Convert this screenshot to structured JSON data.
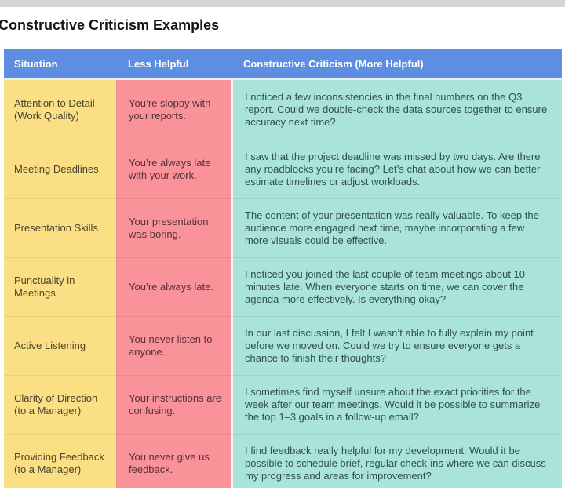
{
  "page": {
    "title": "Constructive Criticism Examples"
  },
  "table": {
    "columns": [
      {
        "label": "Situation"
      },
      {
        "label": "Less Helpful"
      },
      {
        "label": "Constructive Criticism (More Helpful)"
      }
    ],
    "rows": [
      {
        "situation": "Attention to Detail (Work Quality)",
        "less_helpful": "You’re sloppy with your reports.",
        "constructive": "I noticed a few inconsistencies in the final numbers on the Q3 report. Could we double-check the data sources together to ensure accuracy next time?"
      },
      {
        "situation": "Meeting Deadlines",
        "less_helpful": "You’re always late with your work.",
        "constructive": "I saw that the project deadline was missed by two days. Are there any roadblocks you’re facing? Let’s chat about how we can better estimate timelines or adjust workloads."
      },
      {
        "situation": "Presentation Skills",
        "less_helpful": "Your presentation was boring.",
        "constructive": "The content of your presentation was really valuable. To keep the audience more engaged next time, maybe incorporating a few more visuals could be effective."
      },
      {
        "situation": "Punctuality in Meetings",
        "less_helpful": "You’re always late.",
        "constructive": "I noticed you joined the last couple of team meetings about 10 minutes late. When everyone starts on time, we can cover the agenda more effectively. Is everything okay?"
      },
      {
        "situation": "Active Listening",
        "less_helpful": "You never listen to anyone.",
        "constructive": "In our last discussion, I felt I wasn’t able to fully explain my point before we moved on. Could we try to ensure everyone gets a chance to finish their thoughts?"
      },
      {
        "situation": "Clarity of Direction (to a Manager)",
        "less_helpful": "Your instructions are confusing.",
        "constructive": "I sometimes find myself unsure about the exact priorities for the week after our team meetings. Would it be possible to summarize the top 1–3 goals in a follow-up email?"
      },
      {
        "situation": "Providing Feedback (to a Manager)",
        "less_helpful": "You never give us feedback.",
        "constructive": "I find feedback really helpful for my development. Would it be possible to schedule brief, regular check-ins where we can discuss my progress and areas for improvement?"
      }
    ]
  },
  "colors": {
    "top_bar": "#d5d5d5",
    "header_bg": "#5d8ee2",
    "header_text": "#ffffff",
    "situation_bg": "#fbdf85",
    "less_helpful_bg": "#fa9399",
    "constructive_bg": "#a9e3dc",
    "situation_text": "#4a432e",
    "less_helpful_text": "#55303a",
    "constructive_text": "#31504c",
    "title_text": "#141414"
  }
}
